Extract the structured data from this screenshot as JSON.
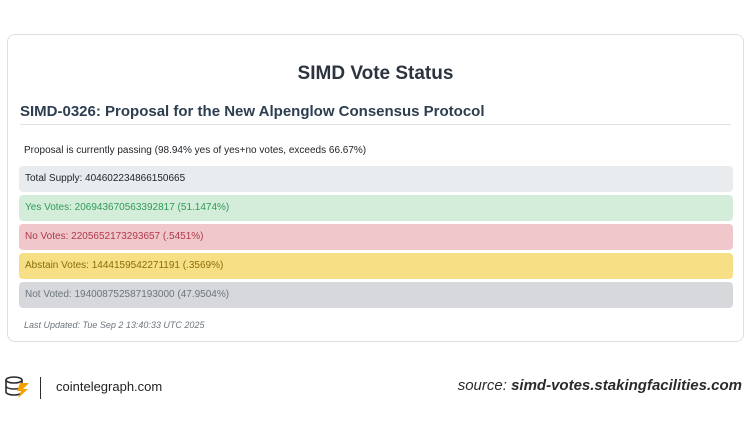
{
  "page_title": "SIMD Vote Status",
  "proposal_title": "SIMD-0326: Proposal for the New Alpenglow Consensus Protocol",
  "status_text": "Proposal is currently passing (98.94% yes of yes+no votes, exceeds 66.67%)",
  "rows": {
    "total_supply": "Total Supply: 404602234866150665",
    "yes_votes": "Yes Votes: 206943670563392817 (51.1474%)",
    "no_votes": "No Votes: 2205652173293657 (.5451%)",
    "abstain_votes": "Abstain Votes: 1444159542271191 (.3569%)",
    "not_voted": "Not Voted: 194008752587193000 (47.9504%)"
  },
  "last_updated": "Last Updated: Tue Sep 2 13:40:33 UTC 2025",
  "footer": {
    "brand": "cointelegraph.com",
    "source_prefix": "source: ",
    "source_url": "simd-votes.stakingfacilities.com"
  },
  "colors": {
    "yes": "#d4edda",
    "no": "#f0c8cc",
    "abstain": "#f7df86",
    "not_voted": "#d6d8db",
    "supply": "#e9ecef",
    "logo_accent": "#f4a100"
  },
  "icons": {
    "logo": "cointelegraph-logo-icon"
  }
}
